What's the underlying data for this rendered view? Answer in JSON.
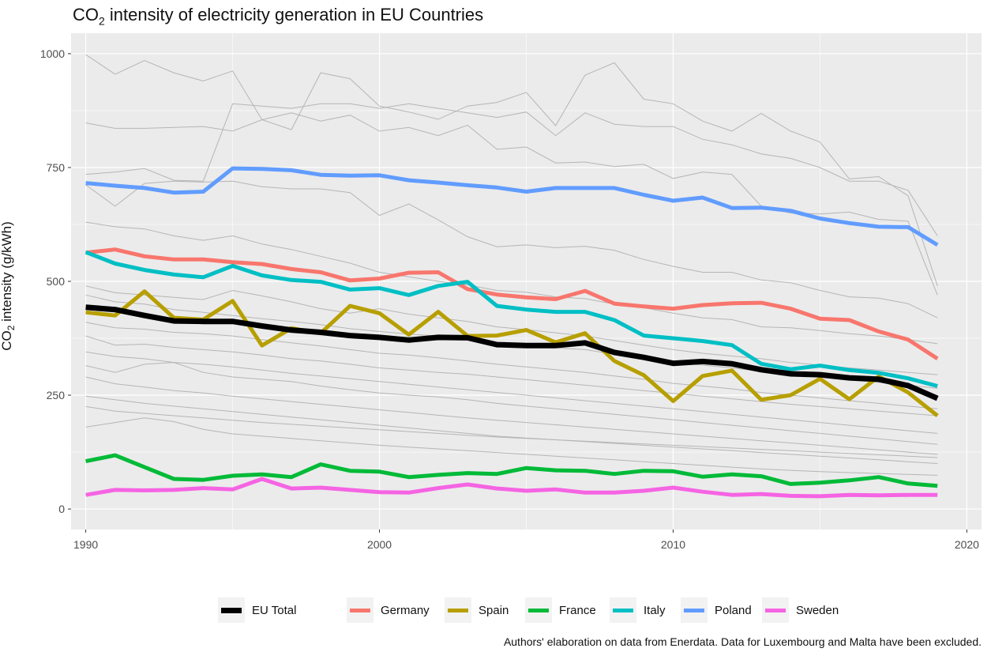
{
  "title_pre": "CO",
  "title_sub": "2",
  "title_post": " intensity of electricity generation in EU Countries",
  "ylabel_pre": "CO",
  "ylabel_sub": "2",
  "ylabel_post": " intensity (g/kWh)",
  "caption": "Authors' elaboration on data from Enerdata. Data for Luxembourg and Malta have been excluded.",
  "chart_data": {
    "type": "line",
    "title": "CO2 intensity of electricity generation in EU Countries",
    "xlabel": "",
    "ylabel": "CO2 intensity (g/kWh)",
    "xlim": [
      1989.5,
      2020.5
    ],
    "ylim": [
      -45,
      1045
    ],
    "x_ticks": [
      1990,
      2000,
      2010,
      2020
    ],
    "y_ticks": [
      0,
      250,
      500,
      750,
      1000
    ],
    "grid": true,
    "legend": "bottom",
    "panel_background": "#ebebeb",
    "grid_color": "#ffffff",
    "background_line_color": "#b5b5b5",
    "x": [
      1990,
      1991,
      1992,
      1993,
      1994,
      1995,
      1996,
      1997,
      1998,
      1999,
      2000,
      2001,
      2002,
      2003,
      2004,
      2005,
      2006,
      2007,
      2008,
      2009,
      2010,
      2011,
      2012,
      2013,
      2014,
      2015,
      2016,
      2017,
      2018,
      2019
    ],
    "series": [
      {
        "name": "EU Total",
        "color": "#000000",
        "values": [
          443,
          438,
          425,
          413,
          412,
          412,
          402,
          393,
          388,
          381,
          377,
          371,
          377,
          376,
          361,
          359,
          359,
          365,
          344,
          333,
          320,
          324,
          319,
          306,
          297,
          295,
          288,
          285,
          271,
          243
        ]
      },
      {
        "name": "Germany",
        "color": "#f8766d",
        "values": [
          563,
          570,
          555,
          548,
          548,
          542,
          538,
          527,
          520,
          502,
          506,
          519,
          520,
          483,
          471,
          465,
          461,
          479,
          451,
          445,
          440,
          448,
          452,
          453,
          440,
          418,
          415,
          390,
          372,
          330
        ]
      },
      {
        "name": "Spain",
        "color": "#b79f00",
        "values": [
          432,
          425,
          478,
          420,
          416,
          457,
          359,
          397,
          386,
          446,
          430,
          383,
          433,
          380,
          381,
          393,
          366,
          386,
          325,
          294,
          237,
          292,
          304,
          240,
          250,
          286,
          241,
          291,
          256,
          205
        ]
      },
      {
        "name": "France",
        "color": "#00ba38",
        "values": [
          105,
          118,
          92,
          66,
          64,
          73,
          76,
          70,
          98,
          84,
          82,
          70,
          75,
          79,
          77,
          90,
          85,
          84,
          77,
          84,
          83,
          71,
          76,
          72,
          55,
          58,
          63,
          70,
          56,
          51
        ]
      },
      {
        "name": "Italy",
        "color": "#00bfc4",
        "values": [
          564,
          539,
          525,
          515,
          509,
          534,
          513,
          503,
          499,
          482,
          485,
          470,
          490,
          499,
          446,
          438,
          433,
          433,
          415,
          381,
          375,
          369,
          360,
          319,
          307,
          315,
          305,
          299,
          287,
          270
        ]
      },
      {
        "name": "Poland",
        "color": "#619cff",
        "values": [
          716,
          710,
          705,
          695,
          697,
          748,
          747,
          744,
          734,
          732,
          733,
          722,
          717,
          711,
          706,
          697,
          705,
          705,
          705,
          690,
          677,
          684,
          661,
          662,
          655,
          638,
          628,
          620,
          619,
          580
        ]
      },
      {
        "name": "Sweden",
        "color": "#f564e3",
        "values": [
          31,
          42,
          41,
          42,
          46,
          43,
          66,
          45,
          47,
          42,
          37,
          36,
          46,
          54,
          45,
          40,
          43,
          36,
          36,
          40,
          47,
          38,
          31,
          33,
          29,
          28,
          31,
          30,
          31,
          31
        ]
      }
    ],
    "background_series": [
      {
        "values": [
          998,
          955,
          985,
          958,
          940,
          962,
          855,
          833,
          958,
          945,
          885,
          872,
          856,
          885,
          893,
          915,
          842,
          953,
          980,
          900,
          890,
          852,
          830,
          869,
          830,
          806,
          725,
          730,
          688,
          490
        ]
      },
      {
        "values": [
          848,
          836,
          836,
          838,
          840,
          830,
          855,
          870,
          852,
          865,
          830,
          838,
          820,
          843,
          790,
          795,
          760,
          762,
          752,
          757,
          726,
          740,
          735,
          665,
          650,
          648,
          652,
          636,
          632,
          470
        ]
      },
      {
        "values": [
          735,
          740,
          748,
          722,
          720,
          890,
          885,
          880,
          890,
          890,
          880,
          890,
          880,
          870,
          860,
          872,
          820,
          870,
          845,
          840,
          840,
          812,
          800,
          780,
          770,
          750,
          720,
          720,
          700,
          600
        ]
      },
      {
        "values": [
          712,
          665,
          715,
          720,
          718,
          720,
          708,
          703,
          703,
          695,
          645,
          670,
          635,
          598,
          576,
          580,
          574,
          577,
          568,
          548,
          533,
          520,
          520,
          503,
          497,
          480,
          466,
          463,
          451,
          420
        ]
      },
      {
        "values": [
          630,
          620,
          615,
          600,
          590,
          600,
          582,
          570,
          555,
          540,
          520,
          510,
          500,
          492,
          480,
          476,
          466,
          462,
          450,
          442,
          430,
          420,
          416,
          400,
          398,
          392,
          385,
          380,
          372,
          363
        ]
      },
      {
        "values": [
          490,
          475,
          470,
          465,
          460,
          480,
          468,
          455,
          440,
          430,
          440,
          428,
          420,
          412,
          400,
          394,
          387,
          380,
          370,
          360,
          350,
          342,
          336,
          330,
          322,
          316,
          310,
          305,
          300,
          295
        ]
      },
      {
        "values": [
          470,
          455,
          450,
          438,
          432,
          425,
          418,
          412,
          405,
          396,
          390,
          384,
          380,
          374,
          366,
          360,
          354,
          350,
          340,
          332,
          322,
          316,
          310,
          302,
          296,
          290,
          283,
          278,
          272,
          265
        ]
      },
      {
        "values": [
          410,
          398,
          395,
          388,
          385,
          380,
          372,
          365,
          358,
          350,
          342,
          338,
          332,
          325,
          318,
          312,
          306,
          300,
          292,
          285,
          276,
          270,
          264,
          256,
          250,
          244,
          238,
          232,
          226,
          220
        ]
      },
      {
        "values": [
          380,
          360,
          362,
          355,
          350,
          345,
          338,
          330,
          325,
          318,
          310,
          305,
          300,
          296,
          290,
          284,
          278,
          272,
          266,
          260,
          254,
          248,
          242,
          236,
          230,
          225,
          220,
          215,
          210,
          205
        ]
      },
      {
        "values": [
          345,
          335,
          330,
          322,
          318,
          312,
          305,
          298,
          292,
          286,
          280,
          274,
          268,
          262,
          256,
          250,
          244,
          238,
          232,
          226,
          220,
          214,
          208,
          202,
          196,
          190,
          184,
          178,
          172,
          166
        ]
      },
      {
        "values": [
          315,
          300,
          318,
          322,
          300,
          290,
          285,
          280,
          270,
          262,
          255,
          250,
          246,
          240,
          232,
          226,
          220,
          214,
          208,
          202,
          196,
          190,
          184,
          178,
          172,
          166,
          160,
          154,
          148,
          142
        ]
      },
      {
        "values": [
          290,
          275,
          268,
          260,
          255,
          248,
          242,
          236,
          230,
          224,
          218,
          212,
          206,
          200,
          195,
          190,
          185,
          180,
          175,
          170,
          165,
          160,
          155,
          150,
          145,
          140,
          135,
          130,
          125,
          120
        ]
      },
      {
        "values": [
          248,
          240,
          232,
          226,
          220,
          214,
          208,
          202,
          196,
          190,
          184,
          178,
          172,
          166,
          160,
          156,
          152,
          148,
          144,
          140,
          136,
          132,
          128,
          124,
          120,
          116,
          112,
          108,
          104,
          100
        ]
      },
      {
        "values": [
          225,
          215,
          210,
          205,
          200,
          195,
          190,
          186,
          182,
          178,
          174,
          170,
          166,
          162,
          158,
          155,
          152,
          149,
          146,
          143,
          140,
          137,
          134,
          131,
          128,
          125,
          122,
          119,
          116,
          113
        ]
      },
      {
        "values": [
          180,
          190,
          200,
          192,
          175,
          165,
          160,
          155,
          150,
          145,
          140,
          136,
          132,
          128,
          124,
          120,
          116,
          112,
          108,
          104,
          100,
          96,
          92,
          88,
          85,
          82,
          80,
          78,
          76,
          74
        ]
      }
    ]
  }
}
